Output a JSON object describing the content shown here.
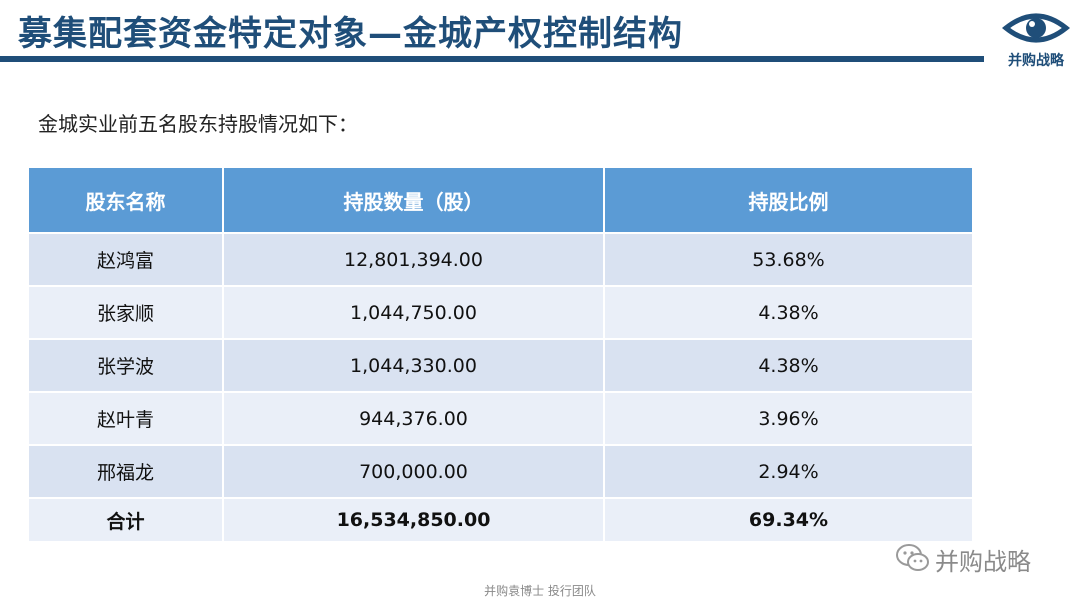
{
  "header": {
    "title": "募集配套资金特定对象—金城产权控制结构",
    "logo_text": "并购战略"
  },
  "subtitle": "金城实业前五名股东持股情况如下：",
  "table": {
    "columns": [
      "股东名称",
      "持股数量（股）",
      "持股比例"
    ],
    "rows": [
      {
        "name": "赵鸿富",
        "shares": "12,801,394.00",
        "ratio": "53.68%"
      },
      {
        "name": "张家顺",
        "shares": "1,044,750.00",
        "ratio": "4.38%"
      },
      {
        "name": "张学波",
        "shares": "1,044,330.00",
        "ratio": "4.38%"
      },
      {
        "name": "赵叶青",
        "shares": "944,376.00",
        "ratio": "3.96%"
      },
      {
        "name": "邢福龙",
        "shares": "700,000.00",
        "ratio": "2.94%"
      }
    ],
    "total": {
      "name": "合计",
      "shares": "16,534,850.00",
      "ratio": "69.34%"
    }
  },
  "watermark": "并购战略",
  "footer": "并购袁博士 投行团队",
  "colors": {
    "title": "#1f4e79",
    "header_bg": "#5b9bd5",
    "row_dark": "#d9e2f1",
    "row_light": "#eaeff8"
  }
}
